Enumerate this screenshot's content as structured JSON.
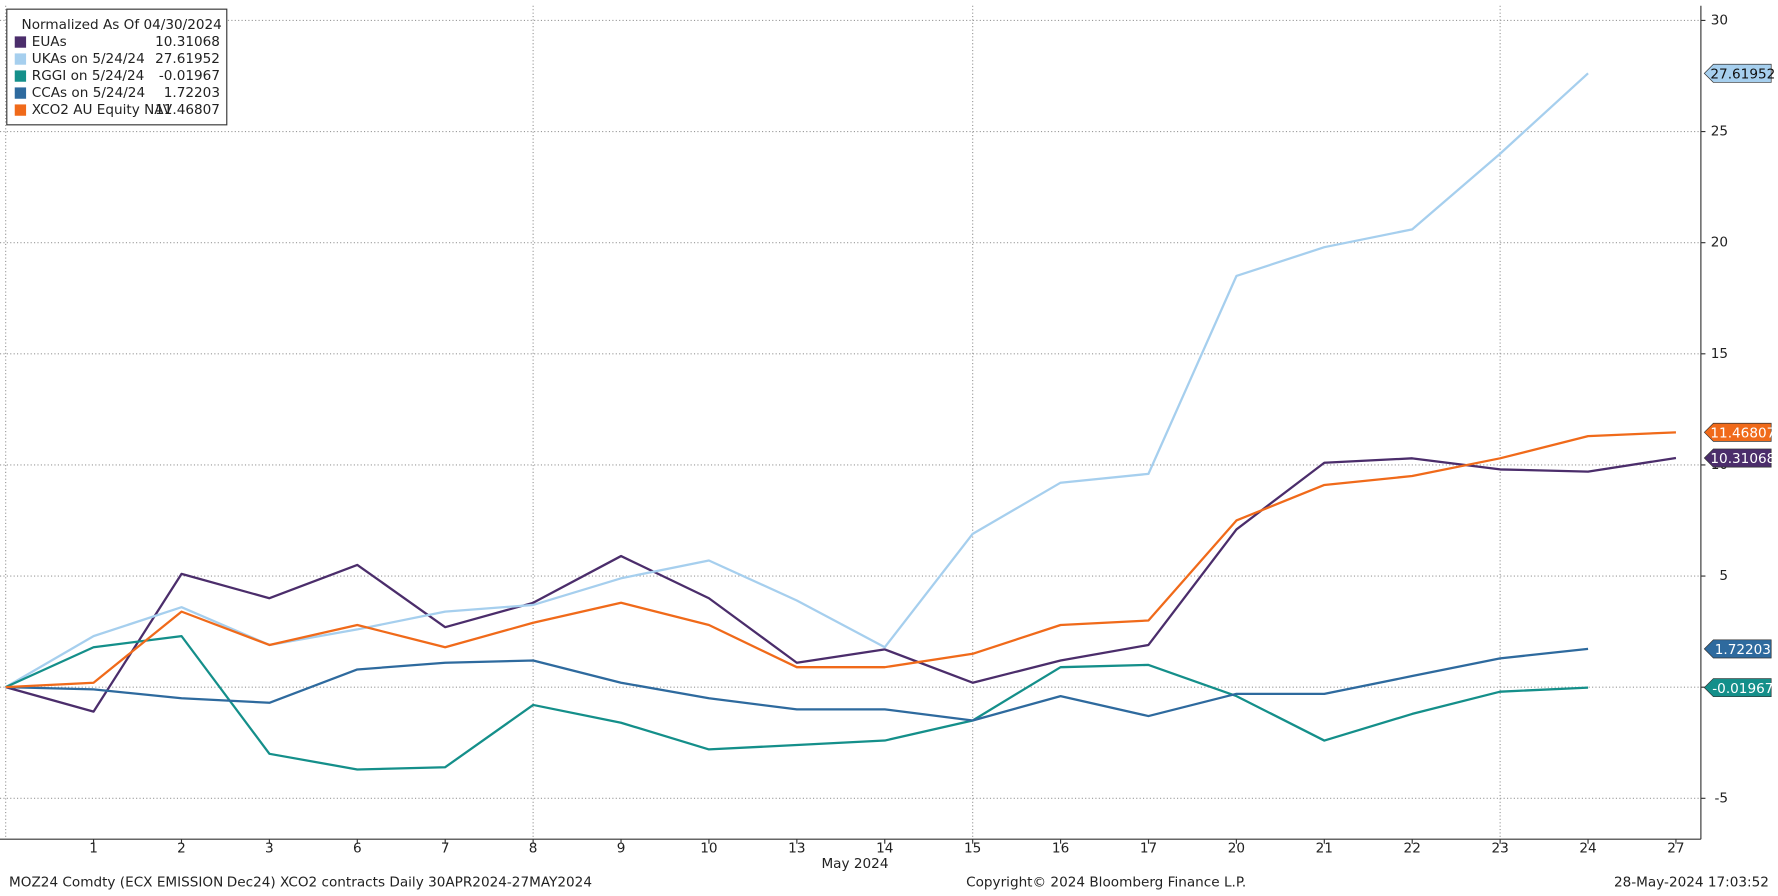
{
  "chart_data": {
    "type": "line",
    "legend_title": "Normalized As Of 04/30/2024",
    "x": [
      null,
      "1",
      "2",
      "3",
      "6",
      "7",
      "8",
      "9",
      "10",
      "13",
      "14",
      "15",
      "16",
      "17",
      "20",
      "21",
      "22",
      "23",
      "24",
      "27"
    ],
    "xlabel": "May 2024",
    "ylim": [
      -6.84,
      30.66
    ],
    "yticks": [
      -5,
      0,
      5,
      10,
      15,
      20,
      25,
      30
    ],
    "grid": true,
    "legend": "upper left",
    "series": [
      {
        "name": "EUAs",
        "color": "#4b2d6b",
        "values": [
          0,
          -1.1,
          5.1,
          4.0,
          5.5,
          2.7,
          3.8,
          5.9,
          4.0,
          1.1,
          1.7,
          0.2,
          1.2,
          1.9,
          7.1,
          10.1,
          10.3,
          9.8,
          9.7,
          10.31068
        ]
      },
      {
        "name": "UKAs on 5/24/24",
        "color": "#a6cfee",
        "values": [
          0,
          2.3,
          3.6,
          1.9,
          2.6,
          3.4,
          3.7,
          4.9,
          5.7,
          3.9,
          1.8,
          6.9,
          9.2,
          9.6,
          18.5,
          19.8,
          20.6,
          24.0,
          27.61952,
          null
        ]
      },
      {
        "name": "RGGI on 5/24/24",
        "color": "#148f8a",
        "values": [
          0,
          1.8,
          2.3,
          -3.0,
          -3.7,
          -3.6,
          -0.8,
          -1.6,
          -2.8,
          -2.6,
          -2.4,
          -1.5,
          0.9,
          1.0,
          -0.4,
          -2.4,
          -1.2,
          -0.2,
          -0.01967,
          null
        ]
      },
      {
        "name": "CCAs on 5/24/24",
        "color": "#2e6a9e",
        "values": [
          0,
          -0.1,
          -0.5,
          -0.7,
          0.8,
          1.1,
          1.2,
          0.2,
          -0.5,
          -1.0,
          -1.0,
          -1.5,
          -0.4,
          -1.3,
          -0.3,
          -0.3,
          0.5,
          1.3,
          1.72203,
          null
        ]
      },
      {
        "name": "XCO2 AU Equity NAV",
        "color": "#f06a1a",
        "values": [
          0,
          0.2,
          3.4,
          1.9,
          2.8,
          1.8,
          2.9,
          3.8,
          2.8,
          0.9,
          0.9,
          1.5,
          2.8,
          3.0,
          7.5,
          9.1,
          9.5,
          10.3,
          11.3,
          11.46807
        ]
      }
    ],
    "footer": [
      "MOZ24 Comdty (ECX EMISSION",
      "Dec24) XCO2 contracts  Daily 30APR2024-27MAY2024",
      "Copyright© 2024 Bloomberg Finance L.P.",
      "28-May-2024 17:03:52"
    ]
  }
}
